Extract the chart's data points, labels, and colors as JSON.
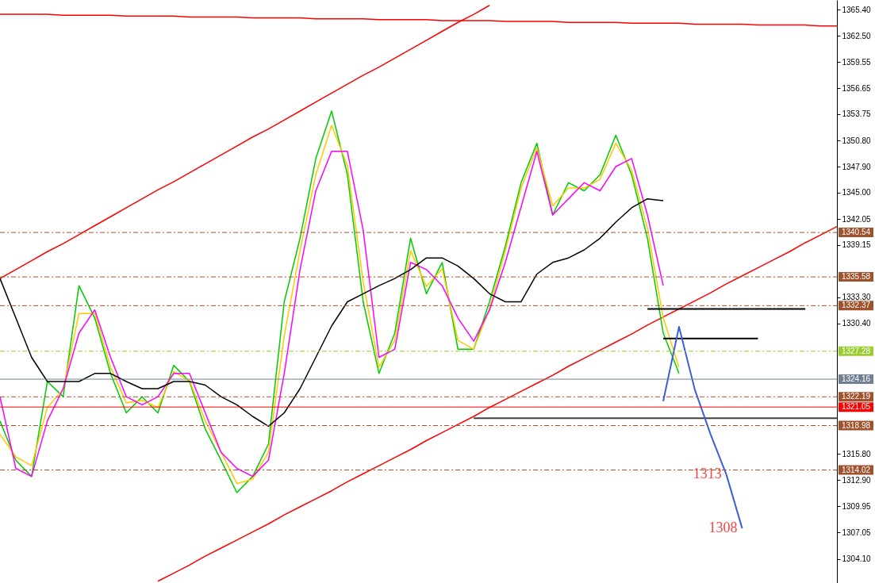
{
  "chart_data": {
    "type": "line",
    "categories": [
      null,
      null,
      null,
      null,
      null,
      null,
      null,
      null,
      null,
      null,
      null,
      null,
      null,
      null,
      null,
      null,
      null,
      null,
      null,
      null,
      null,
      null,
      null,
      null,
      null,
      null,
      null,
      null,
      null,
      null,
      null,
      null,
      null,
      null,
      null,
      null,
      null,
      null,
      null,
      null,
      null,
      null,
      null,
      null,
      null,
      null,
      null,
      null,
      null,
      null,
      null,
      null,
      null,
      null
    ],
    "series": [
      {
        "color": "#ff0000",
        "values": [
          1364.9,
          1364.9,
          1364.9,
          1364.9,
          1364.8,
          1364.8,
          1364.8,
          1364.8,
          1364.7,
          1364.7,
          1364.7,
          1364.7,
          1364.6,
          1364.6,
          1364.6,
          1364.6,
          1364.5,
          1364.5,
          1364.5,
          1364.5,
          1364.4,
          1364.4,
          1364.4,
          1364.4,
          1364.3,
          1364.3,
          1364.3,
          1364.3,
          1364.2,
          1364.2,
          1364.2,
          1364.2,
          1364.1,
          1364.1,
          1364.1,
          1364.1,
          1364.0,
          1364.0,
          1364.0,
          1364.0,
          1363.9,
          1363.9,
          1363.9,
          1363.9,
          1363.8,
          1363.8,
          1363.8,
          1363.8,
          1363.7,
          1363.7,
          1363.7,
          1363.7,
          1363.6,
          1363.6
        ]
      },
      {
        "color": "#ff0000",
        "values": [
          1335.4,
          1336.4,
          1337.4,
          1338.4,
          1339.3,
          1340.3,
          1341.3,
          1342.3,
          1343.3,
          1344.3,
          1345.3,
          1346.2,
          1347.2,
          1348.2,
          1349.2,
          1350.2,
          1351.2,
          1352.1,
          1353.1,
          1354.1,
          1355.1,
          1356.1,
          1357.1,
          1358.1,
          1359.0,
          1360.0,
          1361.0,
          1362.0,
          1363.0,
          1364.0,
          1364.9,
          1365.9,
          null,
          null,
          null,
          null,
          null,
          null,
          null,
          null,
          null,
          null,
          null,
          null,
          null,
          null,
          null,
          null,
          null,
          null,
          null,
          null,
          null,
          null
        ]
      },
      {
        "color": "#ff0000",
        "values": [
          null,
          null,
          null,
          null,
          null,
          null,
          null,
          null,
          null,
          null,
          1301.6,
          1302.5,
          1303.4,
          1304.4,
          1305.3,
          1306.2,
          1307.1,
          1308.0,
          1309.0,
          1309.9,
          1310.8,
          1311.7,
          1312.7,
          1313.6,
          1314.5,
          1315.4,
          1316.3,
          1317.3,
          1318.2,
          1319.1,
          1320.0,
          1321.0,
          1321.9,
          1322.8,
          1323.7,
          1324.6,
          1325.6,
          1326.5,
          1327.4,
          1328.3,
          1329.2,
          1330.2,
          1331.1,
          1332.0,
          1332.9,
          1333.8,
          1334.8,
          1335.7,
          1336.6,
          1337.5,
          1338.4,
          1339.4,
          1340.3,
          1341.2
        ]
      },
      {
        "color": "#00cc00",
        "values": [
          1319.5,
          1315.1,
          1313.3,
          1323.9,
          1322.2,
          1334.6,
          1331.0,
          1324.8,
          1320.4,
          1322.2,
          1320.4,
          1325.7,
          1323.9,
          1318.6,
          1315.1,
          1311.5,
          1313.3,
          1316.9,
          1332.8,
          1339.9,
          1348.8,
          1354.1,
          1347.0,
          1332.8,
          1324.8,
          1329.3,
          1339.9,
          1333.7,
          1337.2,
          1327.5,
          1327.5,
          1332.8,
          1339.0,
          1346.1,
          1350.5,
          1342.5,
          1346.1,
          1345.2,
          1347.0,
          1351.4,
          1347.0,
          1339.9,
          1329.3,
          1324.8,
          null,
          null,
          null,
          null,
          null,
          null,
          null,
          null,
          null,
          null
        ]
      },
      {
        "color": "#ffc800",
        "values": [
          1318.0,
          1315.5,
          1314.5,
          1321.0,
          1323.0,
          1331.5,
          1331.5,
          1325.5,
          1321.5,
          1321.8,
          1321.0,
          1325.0,
          1324.0,
          1319.5,
          1316.0,
          1312.5,
          1313.0,
          1316.0,
          1329.0,
          1338.5,
          1347.0,
          1352.5,
          1348.0,
          1335.0,
          1325.5,
          1328.5,
          1338.5,
          1334.5,
          1336.5,
          1328.5,
          1327.5,
          1332.0,
          1338.5,
          1345.5,
          1350.0,
          1343.5,
          1345.5,
          1345.5,
          1346.5,
          1350.5,
          1347.5,
          1341.0,
          1331.0,
          1325.5,
          null,
          null,
          null,
          null,
          null,
          null,
          null,
          null,
          null,
          null
        ]
      },
      {
        "color": "#ff00ff",
        "values": [
          1322.2,
          1314.2,
          1313.3,
          1319.5,
          1323.1,
          1329.3,
          1331.9,
          1326.6,
          1322.2,
          1321.3,
          1322.2,
          1324.8,
          1324.8,
          1320.4,
          1316.0,
          1314.2,
          1313.3,
          1315.1,
          1324.8,
          1336.4,
          1345.2,
          1349.6,
          1349.6,
          1340.8,
          1326.6,
          1327.5,
          1337.2,
          1336.4,
          1334.6,
          1331.0,
          1328.4,
          1331.9,
          1337.2,
          1343.4,
          1349.6,
          1342.5,
          1344.3,
          1346.1,
          1345.2,
          1347.9,
          1348.8,
          1342.5,
          1334.6,
          null,
          null,
          null,
          null,
          null,
          null,
          null,
          null,
          null,
          null,
          null
        ]
      },
      {
        "color": "#000000",
        "values": [
          1335.4,
          1331.0,
          1326.6,
          1323.9,
          1323.9,
          1323.9,
          1324.8,
          1324.8,
          1323.9,
          1323.1,
          1323.1,
          1323.9,
          1323.9,
          1323.5,
          1322.2,
          1321.3,
          1320.0,
          1318.9,
          1320.4,
          1323.1,
          1326.6,
          1330.1,
          1332.8,
          1333.7,
          1334.6,
          1335.4,
          1336.4,
          1337.7,
          1337.7,
          1336.8,
          1335.4,
          1333.7,
          1332.8,
          1332.8,
          1335.9,
          1337.2,
          1337.7,
          1338.6,
          1339.9,
          1341.7,
          1343.3,
          1344.3,
          1344.1,
          null,
          null,
          null,
          null,
          null,
          null,
          null,
          null,
          null,
          null,
          null
        ]
      },
      {
        "color": "#000000",
        "values": [
          null,
          null,
          null,
          null,
          null,
          null,
          null,
          null,
          null,
          null,
          null,
          null,
          null,
          null,
          null,
          null,
          null,
          null,
          null,
          null,
          null,
          null,
          null,
          null,
          null,
          null,
          null,
          null,
          null,
          null,
          null,
          null,
          null,
          null,
          null,
          null,
          null,
          null,
          null,
          null,
          null,
          1332.0,
          1332.0,
          1332.0,
          1332.0,
          1332.0,
          1332.0,
          1332.0,
          1332.0,
          1332.0,
          1332.0,
          1332.0,
          null,
          null
        ]
      },
      {
        "color": "#000000",
        "values": [
          null,
          null,
          null,
          null,
          null,
          null,
          null,
          null,
          null,
          null,
          null,
          null,
          null,
          null,
          null,
          null,
          null,
          null,
          null,
          null,
          null,
          null,
          null,
          null,
          null,
          null,
          null,
          null,
          null,
          null,
          null,
          null,
          null,
          null,
          null,
          null,
          null,
          null,
          null,
          null,
          null,
          null,
          1328.7,
          1328.7,
          1328.7,
          1328.7,
          1328.7,
          1328.7,
          1328.7,
          null,
          null,
          null,
          null,
          null
        ]
      },
      {
        "color": "#404040",
        "values": [
          null,
          null,
          null,
          null,
          null,
          null,
          null,
          null,
          null,
          null,
          null,
          null,
          null,
          null,
          null,
          null,
          null,
          null,
          null,
          null,
          null,
          null,
          null,
          null,
          null,
          null,
          null,
          null,
          null,
          null,
          1319.8,
          1319.8,
          1319.8,
          1319.8,
          1319.8,
          1319.8,
          1319.8,
          1319.8,
          1319.8,
          1319.8,
          1319.8,
          1319.8,
          1319.8,
          1319.8,
          1319.8,
          1319.8,
          1319.8,
          1319.8,
          1319.8,
          1319.8,
          1319.8,
          1319.8,
          1319.8,
          1319.8
        ]
      },
      {
        "color": "#3a5fd9",
        "values": [
          null,
          null,
          null,
          null,
          null,
          null,
          null,
          null,
          null,
          null,
          null,
          null,
          null,
          null,
          null,
          null,
          null,
          null,
          null,
          null,
          null,
          null,
          null,
          null,
          null,
          null,
          null,
          null,
          null,
          null,
          null,
          null,
          null,
          null,
          null,
          null,
          null,
          null,
          null,
          null,
          null,
          null,
          1321.7,
          1330.0,
          1323.0,
          1318.0,
          1313.5,
          1307.5,
          null,
          null,
          null,
          null,
          null,
          null
        ]
      }
    ],
    "ylim": [
      1301.4,
      1366.5
    ],
    "yticks": [
      {
        "value": 1304.1,
        "label": "1304.10"
      },
      {
        "value": 1307.05,
        "label": "1307.05"
      },
      {
        "value": 1309.95,
        "label": "1309.95"
      },
      {
        "value": 1312.9,
        "label": "1312.90"
      },
      {
        "value": 1315.8,
        "label": "1315.80"
      },
      {
        "value": 1330.4,
        "label": "1330.40"
      },
      {
        "value": 1333.3,
        "label": "1333.30"
      },
      {
        "value": 1339.15,
        "label": "1339.15"
      },
      {
        "value": 1342.05,
        "label": "1342.05"
      },
      {
        "value": 1345,
        "label": "1345.00"
      },
      {
        "value": 1347.9,
        "label": "1347.90"
      },
      {
        "value": 1350.8,
        "label": "1350.80"
      },
      {
        "value": 1353.75,
        "label": "1353.75"
      },
      {
        "value": 1356.65,
        "label": "1356.65"
      },
      {
        "value": 1359.55,
        "label": "1359.55"
      },
      {
        "value": 1362.5,
        "label": "1362.50"
      },
      {
        "value": 1365.4,
        "label": "1365.40"
      }
    ],
    "ref_lines": [
      {
        "axis": "y",
        "value": 1340.54,
        "label": "1340.54",
        "color": "#a0522d",
        "line_style": "dashed"
      },
      {
        "axis": "y",
        "value": 1335.58,
        "label": "1335.58",
        "color": "#a0522d",
        "line_style": "dashed"
      },
      {
        "axis": "y",
        "value": 1332.37,
        "label": "1332.37",
        "color": "#a0522d",
        "line_style": "dashed"
      },
      {
        "axis": "y",
        "value": 1327.28,
        "label": "1327.28",
        "color": "#9acd32",
        "line_style": "dashed"
      },
      {
        "axis": "y",
        "value": 1324.16,
        "label": "1324.16",
        "color": "#708090",
        "line_style": "solid"
      },
      {
        "axis": "y",
        "value": 1322.19,
        "label": "1322.19",
        "color": "#a0522d",
        "line_style": "dashed"
      },
      {
        "axis": "y",
        "value": 1321.05,
        "label": "1321.05",
        "color": "#ff0000",
        "line_style": "solid"
      },
      {
        "axis": "y",
        "value": 1318.98,
        "label": "1318.98",
        "color": "#a0522d",
        "line_style": "dashed"
      },
      {
        "axis": "y",
        "value": 1314.02,
        "label": "1314.02",
        "color": "#a0522d",
        "line_style": "dashed"
      }
    ],
    "annotations": [
      "1313",
      "1308"
    ],
    "tick_labels": "y",
    "grid": false,
    "line_style": "solid",
    "marker": "none"
  }
}
